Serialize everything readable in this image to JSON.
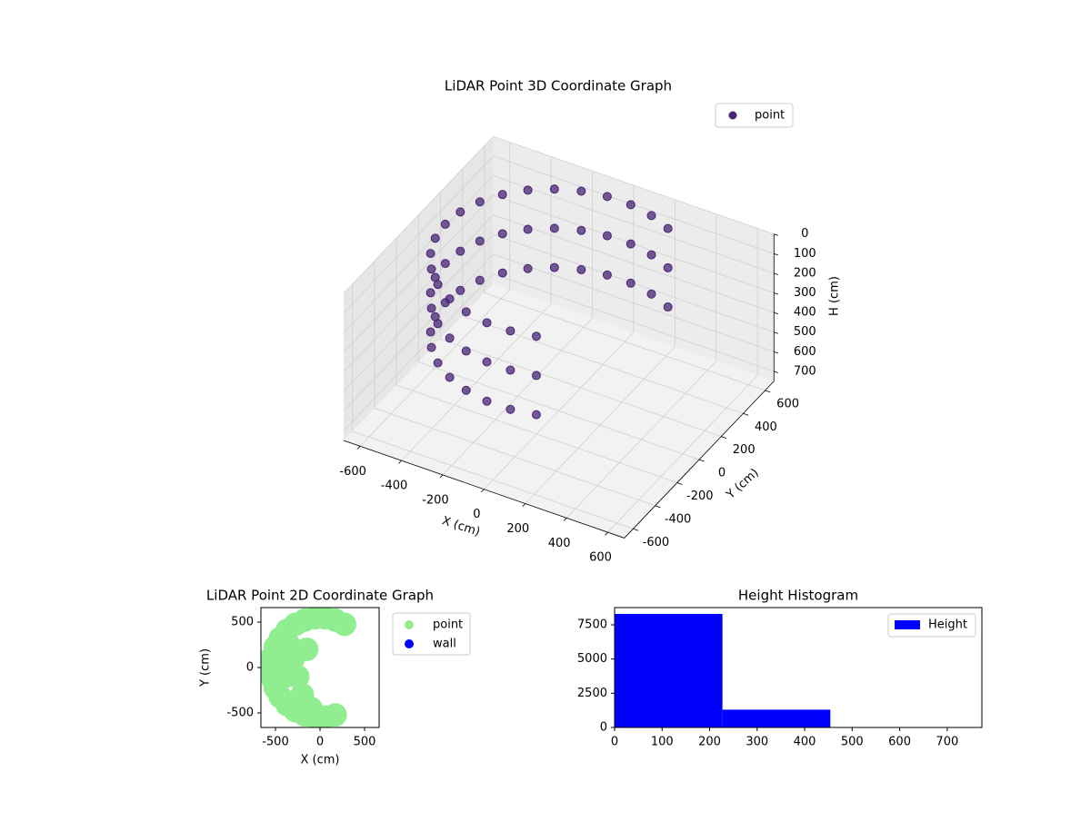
{
  "chart_data": [
    {
      "type": "scatter3d",
      "title": "LiDAR Point 3D Coordinate Graph",
      "x_label": "X (cm)",
      "y_label": "Y (cm)",
      "z_label": "H (cm)",
      "series": [
        {
          "name": "point",
          "color": "#482475",
          "x": [
            275,
            170,
            57,
            -57,
            -170,
            -275,
            -368,
            -445,
            -502,
            -538,
            -550,
            -538,
            -502,
            -445,
            -368,
            -275,
            -170,
            -57,
            57,
            170,
            275,
            170,
            57,
            -57,
            -170,
            -275,
            -368,
            -445,
            -502,
            -538,
            -550,
            -538,
            -502,
            -445,
            -368,
            -275,
            -170,
            -57,
            57,
            170,
            275,
            170,
            57,
            -57,
            -170,
            -275,
            -368,
            -445,
            -502,
            -538,
            -550,
            -538,
            -502,
            -445,
            -368,
            -275,
            -170,
            -57,
            57,
            170
          ],
          "y": [
            476,
            523,
            547,
            547,
            523,
            476,
            409,
            323,
            224,
            114,
            0,
            -114,
            -224,
            -323,
            -409,
            -476,
            -523,
            -547,
            -547,
            -523,
            476,
            523,
            547,
            547,
            523,
            476,
            409,
            323,
            224,
            114,
            0,
            -114,
            -224,
            -323,
            -409,
            -476,
            -523,
            -547,
            -547,
            -523,
            476,
            523,
            547,
            547,
            523,
            476,
            409,
            323,
            224,
            114,
            0,
            -114,
            -224,
            -323,
            -409,
            -476,
            -523,
            -547,
            -547,
            -523
          ],
          "z": [
            0,
            0,
            0,
            0,
            0,
            0,
            0,
            0,
            0,
            0,
            0,
            0,
            0,
            0,
            0,
            0,
            0,
            0,
            0,
            0,
            200,
            200,
            200,
            200,
            200,
            200,
            200,
            200,
            200,
            200,
            200,
            200,
            200,
            200,
            200,
            200,
            200,
            200,
            200,
            200,
            400,
            400,
            400,
            400,
            400,
            400,
            400,
            400,
            400,
            400,
            400,
            400,
            400,
            400,
            400,
            400,
            400,
            400,
            400,
            400
          ]
        }
      ],
      "xlim": [
        -680,
        680
      ],
      "ylim": [
        -680,
        680
      ],
      "zlim": [
        0,
        750
      ],
      "invert_z": true,
      "xticks": [
        -600,
        -400,
        -200,
        0,
        200,
        400,
        600
      ],
      "yticks": [
        -600,
        -400,
        -200,
        0,
        200,
        400,
        600
      ],
      "zticks": [
        0,
        100,
        200,
        300,
        400,
        500,
        600,
        700
      ],
      "grid": true,
      "legend": "upper right"
    },
    {
      "type": "scatter",
      "title": "LiDAR Point 2D Coordinate Graph",
      "x_label": "X (cm)",
      "y_label": "Y (cm)",
      "series": [
        {
          "name": "point",
          "color": "#90ee90",
          "x": [
            275,
            170,
            57,
            -57,
            -170,
            -275,
            -368,
            -445,
            -502,
            -538,
            -550,
            -538,
            -502,
            -445,
            -368,
            -275,
            -170,
            -57,
            57,
            170,
            -300,
            -400,
            -200,
            -350,
            -250,
            -450,
            -150,
            -100
          ],
          "y": [
            476,
            523,
            547,
            547,
            523,
            476,
            409,
            323,
            224,
            114,
            0,
            -114,
            -224,
            -323,
            -409,
            -476,
            -523,
            -547,
            -547,
            -523,
            100,
            -100,
            -300,
            250,
            -100,
            0,
            200,
            -450
          ]
        },
        {
          "name": "wall",
          "color": "#0000ff",
          "x": [],
          "y": []
        }
      ],
      "xlim": [
        -663,
        663
      ],
      "ylim": [
        -660,
        660
      ],
      "xticks": [
        -500,
        0,
        500
      ],
      "yticks": [
        -500,
        0,
        500
      ],
      "legend": "outside right"
    },
    {
      "type": "histogram",
      "title": "Height Histogram",
      "bins": [
        0,
        227,
        454,
        681
      ],
      "counts": [
        8300,
        1300,
        5
      ],
      "series_name": "Height",
      "color": "#0000ff",
      "xlim": [
        0,
        773
      ],
      "ylim": [
        0,
        8760
      ],
      "xticks": [
        0,
        100,
        200,
        300,
        400,
        500,
        600,
        700
      ],
      "yticks": [
        0,
        2500,
        5000,
        7500
      ],
      "legend": "upper right"
    }
  ]
}
